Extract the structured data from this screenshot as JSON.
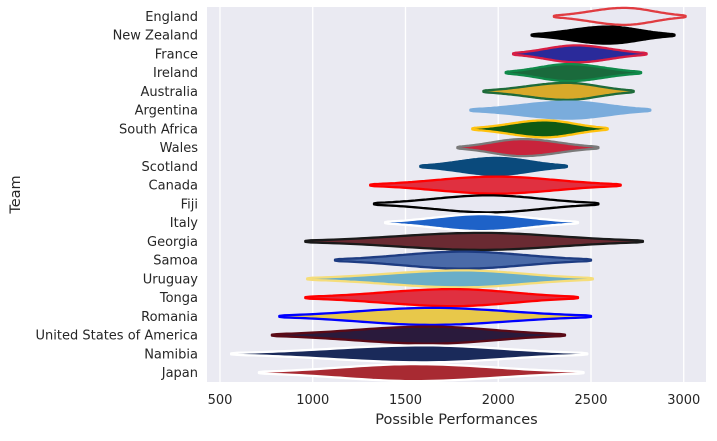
{
  "chart_data": {
    "type": "violin",
    "title": "",
    "xlabel": "Possible Performances",
    "ylabel": "Team",
    "xlim": [
      430,
      3120
    ],
    "xticks": [
      500,
      1000,
      1500,
      2000,
      2500,
      3000
    ],
    "grid": true,
    "legend": "none",
    "colors": {
      "plot_background": "#eaeaf2",
      "grid": "#ffffff",
      "text": "#262626"
    },
    "teams": [
      {
        "name": "England",
        "min": 2300,
        "max": 3010,
        "peak": 2680,
        "fill": "#e8e8f2",
        "outline": "#e03c41"
      },
      {
        "name": "New Zealand",
        "min": 2180,
        "max": 2950,
        "peak": 2590,
        "fill": "#000000",
        "outline": "#000000"
      },
      {
        "name": "France",
        "min": 2080,
        "max": 2800,
        "peak": 2420,
        "fill": "#2a2a9a",
        "outline": "#d81e44"
      },
      {
        "name": "Ireland",
        "min": 2040,
        "max": 2770,
        "peak": 2380,
        "fill": "#1a6a3c",
        "outline": "#108a4a"
      },
      {
        "name": "Australia",
        "min": 1920,
        "max": 2730,
        "peak": 2370,
        "fill": "#d8a92a",
        "outline": "#1e6b3a"
      },
      {
        "name": "Argentina",
        "min": 1850,
        "max": 2820,
        "peak": 2380,
        "fill": "#7aacdc",
        "outline": "#7aacdc"
      },
      {
        "name": "South Africa",
        "min": 1860,
        "max": 2590,
        "peak": 2250,
        "fill": "#0f5a14",
        "outline": "#ffc20e"
      },
      {
        "name": "Wales",
        "min": 1780,
        "max": 2540,
        "peak": 2130,
        "fill": "#c8243c",
        "outline": "#7a7a7a"
      },
      {
        "name": "Scotland",
        "min": 1580,
        "max": 2370,
        "peak": 1990,
        "fill": "#0a4a7c",
        "outline": "#0a4a7c"
      },
      {
        "name": "Canada",
        "min": 1310,
        "max": 2660,
        "peak": 1990,
        "fill": "#e03040",
        "outline": "#ff0000"
      },
      {
        "name": "Fiji",
        "min": 1330,
        "max": 2540,
        "peak": 1950,
        "fill": "#e8e8f2",
        "outline": "#000000"
      },
      {
        "name": "Italy",
        "min": 1390,
        "max": 2430,
        "peak": 1910,
        "fill": "#1e62c8",
        "outline": "#ffffff"
      },
      {
        "name": "Georgia",
        "min": 960,
        "max": 2780,
        "peak": 1910,
        "fill": "#6a2a32",
        "outline": "#1a1a1a"
      },
      {
        "name": "Samoa",
        "min": 1120,
        "max": 2500,
        "peak": 1810,
        "fill": "#4a6aa8",
        "outline": "#1e3c82"
      },
      {
        "name": "Uruguay",
        "min": 970,
        "max": 2510,
        "peak": 1800,
        "fill": "#6aaec8",
        "outline": "#f5dd7a"
      },
      {
        "name": "Tonga",
        "min": 960,
        "max": 2430,
        "peak": 1760,
        "fill": "#e03040",
        "outline": "#ff0000"
      },
      {
        "name": "Romania",
        "min": 820,
        "max": 2500,
        "peak": 1640,
        "fill": "#e8c84a",
        "outline": "#0000ff"
      },
      {
        "name": "United States of America",
        "min": 780,
        "max": 2360,
        "peak": 1630,
        "fill": "#2a1a3c",
        "outline": "#5a0a16"
      },
      {
        "name": "Namibia",
        "min": 560,
        "max": 2480,
        "peak": 1600,
        "fill": "#1a2a5a",
        "outline": "#ffffff"
      },
      {
        "name": "Japan",
        "min": 710,
        "max": 2460,
        "peak": 1550,
        "fill": "#a82a32",
        "outline": "#ffffff"
      }
    ]
  }
}
